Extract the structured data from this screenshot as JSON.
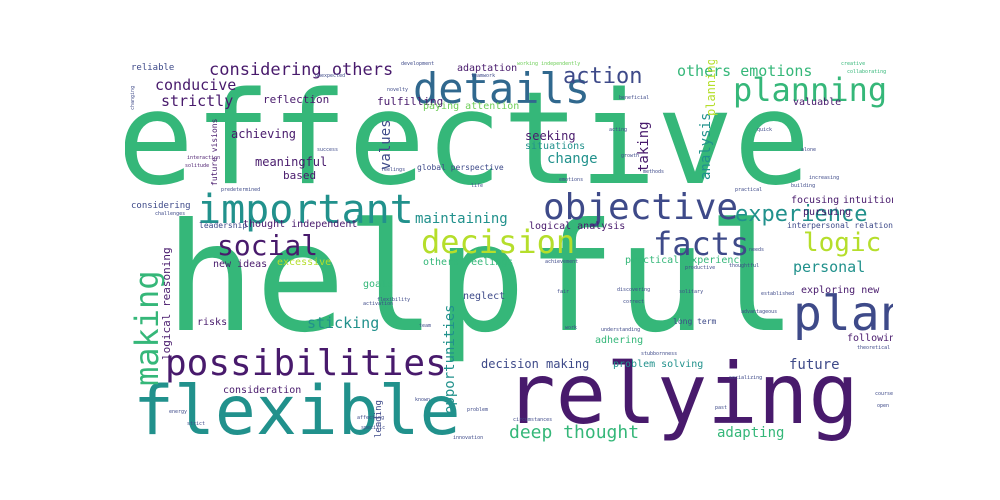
{
  "palette": {
    "dark-purple": "#481a6c",
    "indigo": "#3e4a89",
    "blue": "#30688e",
    "teal": "#21918c",
    "green": "#35b779",
    "light-green": "#6ece58",
    "yellow-green": "#b5de2b",
    "yellow": "#dde318"
  },
  "words": {
    "effective": "effective",
    "helpful": "helpful",
    "relying": "relying",
    "flexible": "flexible",
    "important": "important",
    "possibilities": "possibilities",
    "details": "details",
    "objective": "objective",
    "decision": "decision",
    "facts": "facts",
    "plan": "plan",
    "making": "making",
    "social": "social",
    "planning": "planning",
    "logic": "logic",
    "experience": "experience",
    "action": "action",
    "considering_others": "considering others",
    "others_emotions": "others emotions",
    "deep_thought": "deep thought",
    "maintaining": "maintaining",
    "sticking": "sticking",
    "personal": "personal",
    "adapting": "adapting",
    "future": "future",
    "conducive": "conducive",
    "strictly": "strictly",
    "change": "change",
    "values": "values",
    "taking": "taking",
    "analysis": "analysis",
    "opportunities": "opportunities",
    "decision_making": "decision making",
    "seeking": "seeking",
    "situations": "situations",
    "meaningful": "meaningful",
    "based": "based",
    "achieving": "achieving",
    "reflection": "reflection",
    "fulfilling": "fulfilling",
    "adaptation": "adaptation",
    "paying_attention": "paying attention",
    "logical_analysis": "logical analysis",
    "intuition": "intuition",
    "focusing": "focusing",
    "pursuing": "pursuing",
    "exploring_new": "exploring new",
    "following": "following",
    "valuable": "valuable",
    "logical_reasoning": "logical reasoning",
    "risks": "risks",
    "others_feelings": "others feelings",
    "thought_independent": "thought independent",
    "new_ideas": "new ideas",
    "excessive": "excessive",
    "goals": "goals",
    "neglect": "neglect",
    "practical_experience": "practical experience",
    "adhering": "adhering",
    "problem_solving": "problem solving",
    "consideration": "consideration",
    "leading": "leading",
    "reliable": "reliable",
    "considering": "considering",
    "leadership": "leadership",
    "interpersonal_relationships": "interpersonal relationships",
    "future_visions": "future visions",
    "global_perspective": "global perspective",
    "long_term": "long term",
    "development": "development",
    "working_independently": "working independently",
    "creative": "creative",
    "collaborating": "collaborating",
    "teamwork": "teamwork",
    "unexpected": "unexpected",
    "changing": "changing",
    "interaction": "interaction",
    "solitude": "solitude",
    "feelings": "feelings",
    "emotions": "emotions",
    "success": "success",
    "alone": "alone",
    "building": "building",
    "practical": "practical",
    "quick": "quick",
    "beneficial": "beneficial",
    "acting": "acting",
    "methods": "methods",
    "predetermined": "predetermined",
    "challenges": "challenges",
    "flexibility": "flexibility",
    "activation": "activation",
    "team": "team",
    "fair": "fair",
    "solitary": "solitary",
    "established": "established",
    "advantageous": "advantageous",
    "theoretical": "theoretical",
    "thoughtful": "thoughtful",
    "productive": "productive",
    "needs": "needs",
    "correct": "correct",
    "discovering": "discovering",
    "understanding": "understanding",
    "stubbornness": "stubbornness",
    "known": "known",
    "problem": "problem",
    "affecting": "affecting",
    "strict": "strict",
    "energy": "energy",
    "specific": "specific",
    "innovation": "innovation",
    "circumstances": "circumstances",
    "past": "past",
    "course": "course",
    "open": "open",
    "socializing": "socializing",
    "increasing": "increasing",
    "life": "life",
    "novelty": "novelty",
    "growth": "growth",
    "achievement": "achievement",
    "work": "work"
  }
}
